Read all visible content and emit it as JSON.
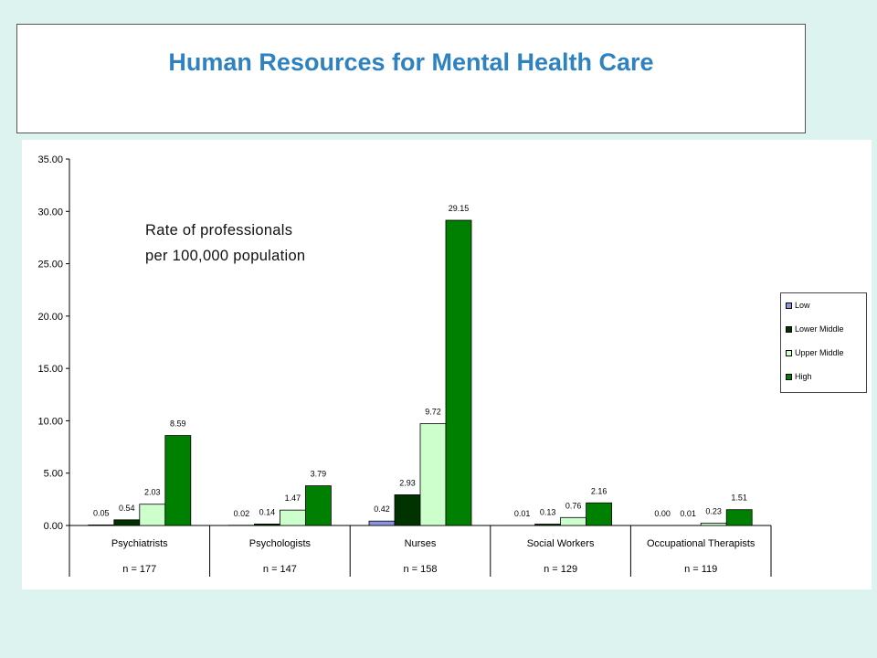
{
  "page": {
    "title": "Human Resources for Mental Health Care",
    "annotation_line1": "Rate of professionals",
    "annotation_line2": "per 100,000 population"
  },
  "colors": {
    "Low": "#8b93e0",
    "Lower Middle": "#003300",
    "Upper Middle": "#ccffcc",
    "High": "#008000",
    "title": "#2f82c0"
  },
  "chart_data": {
    "type": "bar",
    "title": "",
    "xlabel": "",
    "ylabel": "",
    "ylim": [
      0,
      35
    ],
    "yticks": [
      "0.00",
      "5.00",
      "10.00",
      "15.00",
      "20.00",
      "25.00",
      "30.00",
      "35.00"
    ],
    "grid": false,
    "legend_position": "right",
    "categories": [
      "Psychiatrists",
      "Psychologists",
      "Nurses",
      "Social Workers",
      "Occupational Therapists"
    ],
    "category_n": [
      "n = 177",
      "n = 147",
      "n = 158",
      "n = 129",
      "n = 119"
    ],
    "series": [
      {
        "name": "Low",
        "values": [
          0.05,
          0.02,
          0.42,
          0.01,
          0.0
        ],
        "labels": [
          "0.05",
          "0.02",
          "0.42",
          "0.01",
          "0.00"
        ]
      },
      {
        "name": "Lower Middle",
        "values": [
          0.54,
          0.14,
          2.93,
          0.13,
          0.01
        ],
        "labels": [
          "0.54",
          "0.14",
          "2.93",
          "0.13",
          "0.01"
        ]
      },
      {
        "name": "Upper Middle",
        "values": [
          2.03,
          1.47,
          9.72,
          0.76,
          0.23
        ],
        "labels": [
          "2.03",
          "1.47",
          "9.72",
          "0.76",
          "0.23"
        ]
      },
      {
        "name": "High",
        "values": [
          8.59,
          3.79,
          29.15,
          2.16,
          1.51
        ],
        "labels": [
          "8.59",
          "3.79",
          "29.15",
          "2.16",
          "1.51"
        ]
      }
    ]
  }
}
